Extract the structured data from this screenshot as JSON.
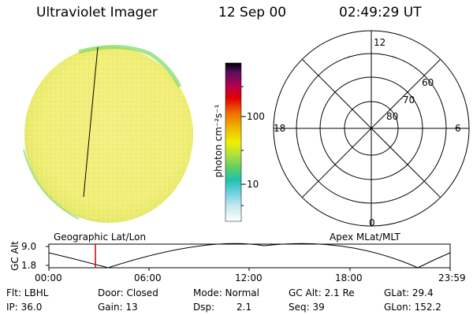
{
  "header": {
    "instrument": "Ultraviolet Imager",
    "date": "12 Sep 00",
    "time": "02:49:29 UT"
  },
  "colorbar": {
    "unit_label": "photon cm⁻²s⁻¹",
    "ticks": [
      "100",
      "10"
    ]
  },
  "polar_plot": {
    "mlt_labels": {
      "top": "12",
      "left": "18",
      "right": "6",
      "bottom": "0"
    },
    "lat_labels": [
      "60",
      "70",
      "80"
    ]
  },
  "timeline": {
    "left_title": "Geographic Lat/Lon",
    "right_title": "Apex MLat/MLT",
    "axis_label": "GC Alt",
    "y_ticks": [
      "9.0",
      "1.8"
    ],
    "x_ticks": [
      "00:00",
      "06:00",
      "12:00",
      "18:00",
      "23:59"
    ]
  },
  "status": {
    "filter": "Flt: LBHL",
    "ip": "IP: 36.0",
    "door": "Door: Closed",
    "gain": "Gain: 13",
    "mode": "Mode: Normal",
    "dsp_label": "Dsp:",
    "dsp_value": "2.1",
    "gc_alt": "GC Alt: 2.1 Re",
    "seq": "Seq: 39",
    "glat": "GLat: 29.4",
    "glon": "GLon: 152.2"
  },
  "colors": {
    "disk_main": "#f2f07a",
    "disk_edge": "#7ed860",
    "orbit_marker": "#d00000"
  }
}
